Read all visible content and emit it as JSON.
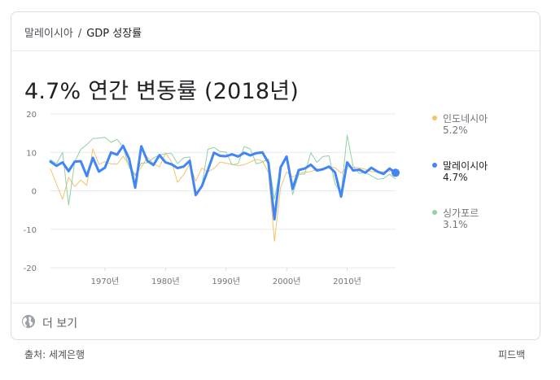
{
  "breadcrumb": {
    "parent": "말레이시아",
    "separator": "/",
    "current": "GDP 성장률"
  },
  "headline": {
    "value": "4.7%",
    "label": "연간 변동률 (2018년)"
  },
  "more_label": "더 보기",
  "source": "출처: 세계은행",
  "feedback": "피드백",
  "colors": {
    "indonesia": "#f6c26b",
    "malaysia": "#4285f4",
    "singapore": "#93d19f",
    "grid": "#e8eaed"
  },
  "legend": [
    {
      "name": "인도네시아",
      "value": "5.2%",
      "color": "#f6c26b",
      "active": false
    },
    {
      "name": "말레이시아",
      "value": "4.7%",
      "color": "#4285f4",
      "active": true
    },
    {
      "name": "싱가포르",
      "value": "3.1%",
      "color": "#93d19f",
      "active": false
    }
  ],
  "chart_data": {
    "type": "line",
    "title": "4.7% 연간 변동률 (2018년)",
    "xlabel": "",
    "ylabel": "",
    "xlim": [
      1961,
      2018
    ],
    "ylim": [
      -20,
      20
    ],
    "yticks": [
      20,
      10,
      0,
      -10,
      -20
    ],
    "xticks": [
      {
        "value": 1970,
        "label": "1970년"
      },
      {
        "value": 1980,
        "label": "1980년"
      },
      {
        "value": 1990,
        "label": "1990년"
      },
      {
        "value": 2000,
        "label": "2000년"
      },
      {
        "value": 2010,
        "label": "2010년"
      }
    ],
    "grid": true,
    "legend_position": "right",
    "x": [
      1961,
      1962,
      1963,
      1964,
      1965,
      1966,
      1967,
      1968,
      1969,
      1970,
      1971,
      1972,
      1973,
      1974,
      1975,
      1976,
      1977,
      1978,
      1979,
      1980,
      1981,
      1982,
      1983,
      1984,
      1985,
      1986,
      1987,
      1988,
      1989,
      1990,
      1991,
      1992,
      1993,
      1994,
      1995,
      1996,
      1997,
      1998,
      1999,
      2000,
      2001,
      2002,
      2003,
      2004,
      2005,
      2006,
      2007,
      2008,
      2009,
      2010,
      2011,
      2012,
      2013,
      2014,
      2015,
      2016,
      2017,
      2018
    ],
    "series": [
      {
        "name": "인도네시아",
        "color": "#f6c26b",
        "width": 1,
        "values": [
          5.7,
          1.8,
          -2.2,
          3.5,
          1.1,
          2.8,
          1.4,
          10.9,
          6.9,
          7.6,
          7.0,
          6.9,
          9.0,
          6.7,
          4.2,
          6.1,
          8.8,
          7.1,
          6.2,
          9.8,
          7.6,
          2.2,
          4.2,
          7.0,
          2.5,
          5.9,
          4.9,
          5.8,
          7.5,
          7.2,
          6.9,
          6.5,
          6.8,
          7.5,
          8.2,
          7.8,
          4.7,
          -13.1,
          0.8,
          4.9,
          3.6,
          4.5,
          4.8,
          5.0,
          5.7,
          5.5,
          6.3,
          6.0,
          4.6,
          6.2,
          6.2,
          6.0,
          5.6,
          5.0,
          4.9,
          5.0,
          5.1,
          5.2
        ]
      },
      {
        "name": "싱가포르",
        "color": "#93d19f",
        "width": 1,
        "values": [
          8.1,
          7.1,
          10.0,
          -3.7,
          7.6,
          10.8,
          12.0,
          13.6,
          13.7,
          13.9,
          12.6,
          13.4,
          11.3,
          6.1,
          4.0,
          7.2,
          7.3,
          8.5,
          9.3,
          9.7,
          9.7,
          7.1,
          8.6,
          8.8,
          -0.6,
          1.3,
          10.8,
          11.3,
          10.2,
          10.1,
          6.7,
          7.1,
          11.5,
          10.9,
          7.0,
          7.5,
          8.3,
          -2.2,
          6.1,
          8.9,
          -1.0,
          4.2,
          4.4,
          9.9,
          7.4,
          8.9,
          9.1,
          1.8,
          -0.6,
          14.5,
          6.3,
          4.5,
          4.8,
          3.9,
          3.0,
          3.2,
          4.3,
          3.1
        ]
      },
      {
        "name": "말레이시아",
        "color": "#4285f4",
        "width": 3,
        "end_marker": true,
        "values": [
          7.6,
          6.5,
          7.4,
          5.1,
          7.6,
          7.7,
          3.8,
          8.6,
          5.0,
          6.0,
          10.0,
          9.4,
          11.7,
          8.3,
          0.8,
          11.6,
          7.8,
          6.7,
          9.3,
          7.4,
          6.9,
          5.9,
          6.3,
          7.8,
          -1.1,
          1.2,
          5.4,
          9.9,
          9.1,
          9.0,
          9.5,
          8.9,
          9.9,
          9.2,
          9.8,
          10.0,
          7.3,
          -7.4,
          6.1,
          8.9,
          0.5,
          5.4,
          5.8,
          6.8,
          5.3,
          5.6,
          6.3,
          4.8,
          -1.5,
          7.4,
          5.3,
          5.5,
          4.7,
          6.0,
          5.0,
          4.4,
          5.8,
          4.7
        ]
      }
    ]
  }
}
